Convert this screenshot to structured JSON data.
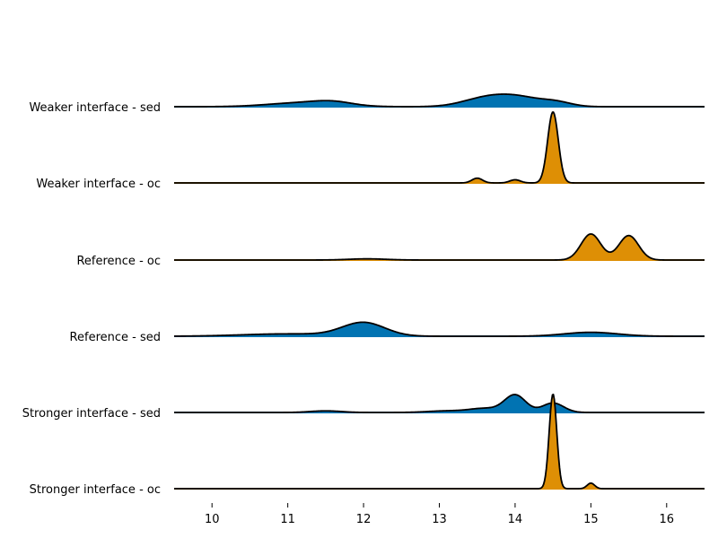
{
  "chart_data": {
    "type": "ridgeline",
    "title": "",
    "xlabel": "",
    "ylabel": "",
    "xlim": [
      9.5,
      16.5
    ],
    "xticks": [
      "10",
      "11",
      "12",
      "13",
      "14",
      "15",
      "16"
    ],
    "grid": false,
    "legend": "none",
    "outline_color": "#000000",
    "series": [
      {
        "name": "Weaker interface - sed",
        "color": "#0173b2",
        "peaks": [
          {
            "x": 11.2,
            "width": 0.45,
            "height": 0.05
          },
          {
            "x": 11.6,
            "width": 0.25,
            "height": 0.04
          },
          {
            "x": 13.6,
            "width": 0.3,
            "height": 0.1
          },
          {
            "x": 14.05,
            "width": 0.3,
            "height": 0.11
          },
          {
            "x": 14.55,
            "width": 0.2,
            "height": 0.05
          }
        ]
      },
      {
        "name": "Weaker interface - oc",
        "color": "#de8f05",
        "peaks": [
          {
            "x": 13.5,
            "width": 0.07,
            "height": 0.06
          },
          {
            "x": 14.0,
            "width": 0.07,
            "height": 0.04
          },
          {
            "x": 14.5,
            "width": 0.07,
            "height": 0.9
          }
        ]
      },
      {
        "name": "Reference - oc",
        "color": "#de8f05",
        "peaks": [
          {
            "x": 12.05,
            "width": 0.25,
            "height": 0.015
          },
          {
            "x": 15.0,
            "width": 0.13,
            "height": 0.33
          },
          {
            "x": 15.5,
            "width": 0.13,
            "height": 0.31
          }
        ]
      },
      {
        "name": "Reference - sed",
        "color": "#0173b2",
        "peaks": [
          {
            "x": 11.0,
            "width": 0.6,
            "height": 0.03
          },
          {
            "x": 12.0,
            "width": 0.28,
            "height": 0.17
          },
          {
            "x": 15.0,
            "width": 0.35,
            "height": 0.05
          }
        ]
      },
      {
        "name": "Stronger interface - sed",
        "color": "#0173b2",
        "peaks": [
          {
            "x": 11.5,
            "width": 0.2,
            "height": 0.02
          },
          {
            "x": 13.1,
            "width": 0.25,
            "height": 0.02
          },
          {
            "x": 13.6,
            "width": 0.2,
            "height": 0.05
          },
          {
            "x": 14.0,
            "width": 0.14,
            "height": 0.22
          },
          {
            "x": 14.5,
            "width": 0.14,
            "height": 0.12
          }
        ]
      },
      {
        "name": "Stronger interface - oc",
        "color": "#de8f05",
        "peaks": [
          {
            "x": 14.5,
            "width": 0.05,
            "height": 1.2
          },
          {
            "x": 15.0,
            "width": 0.05,
            "height": 0.07
          }
        ]
      }
    ]
  }
}
